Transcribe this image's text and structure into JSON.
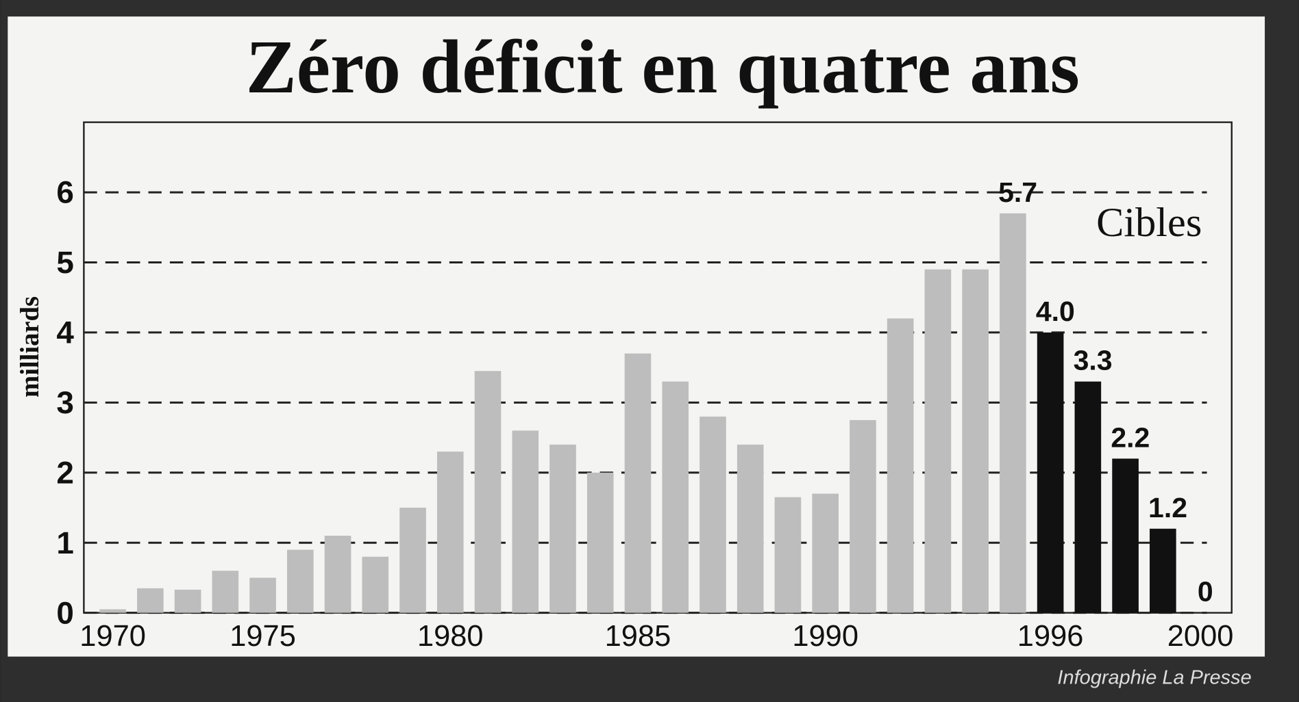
{
  "chart_data": {
    "type": "bar",
    "title": "Zéro déficit en quatre ans",
    "y_label": "milliards",
    "credit": "Infographie La Presse",
    "categories": [
      "1970",
      null,
      null,
      null,
      "1975",
      null,
      null,
      null,
      null,
      "1980",
      null,
      null,
      null,
      null,
      "1985",
      null,
      null,
      null,
      null,
      "1990",
      null,
      null,
      null,
      null,
      null,
      "1996",
      null,
      null,
      null,
      "2000"
    ],
    "series": [
      {
        "color": "#bdbdbd",
        "values": [
          0.05,
          0.35,
          0.33,
          0.6,
          0.5,
          0.9,
          1.1,
          0.8,
          1.5,
          2.3,
          3.45,
          2.6,
          2.4,
          2.0,
          3.7,
          3.3,
          2.8,
          2.4,
          1.65,
          1.7,
          2.75,
          4.2,
          4.9,
          4.9,
          5.7,
          null,
          null,
          null,
          null,
          null
        ],
        "value_labels": [
          null,
          null,
          null,
          null,
          null,
          null,
          null,
          null,
          null,
          null,
          null,
          null,
          null,
          null,
          null,
          null,
          null,
          null,
          null,
          null,
          null,
          null,
          null,
          null,
          "5.7",
          null,
          null,
          null,
          null,
          null
        ]
      },
      {
        "name": "Cibles",
        "color": "#111111",
        "values": [
          null,
          null,
          null,
          null,
          null,
          null,
          null,
          null,
          null,
          null,
          null,
          null,
          null,
          null,
          null,
          null,
          null,
          null,
          null,
          null,
          null,
          null,
          null,
          null,
          null,
          4.0,
          3.3,
          2.2,
          1.2,
          0
        ],
        "value_labels": [
          null,
          null,
          null,
          null,
          null,
          null,
          null,
          null,
          null,
          null,
          null,
          null,
          null,
          null,
          null,
          null,
          null,
          null,
          null,
          null,
          null,
          null,
          null,
          null,
          null,
          "4.0",
          "3.3",
          "2.2",
          "1.2",
          "0"
        ]
      }
    ],
    "ylim": [
      0,
      7
    ],
    "yticks": [
      0,
      1,
      2,
      3,
      4,
      5,
      6
    ],
    "grid": true
  }
}
